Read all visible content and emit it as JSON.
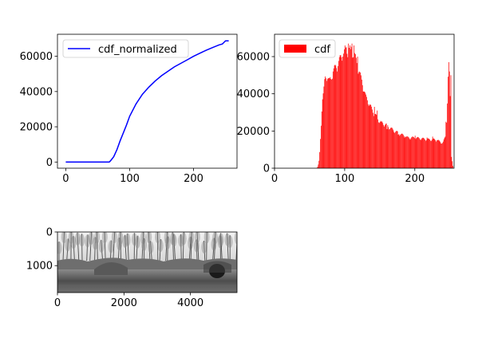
{
  "chart_data": [
    {
      "type": "line",
      "legend": "top-left",
      "xlim": [
        -13,
        268
      ],
      "ylim": [
        -3500,
        72500
      ],
      "xticks": [
        0,
        100,
        200
      ],
      "yticks": [
        0,
        20000,
        40000,
        60000
      ],
      "xtick_labels": [
        "0",
        "100",
        "200"
      ],
      "ytick_labels": [
        "0",
        "20000",
        "40000",
        "60000"
      ],
      "series": [
        {
          "name": "cdf_normalized",
          "color": "#0000ff",
          "x": [
            0,
            68,
            70,
            75,
            80,
            85,
            90,
            95,
            100,
            110,
            120,
            130,
            140,
            150,
            160,
            170,
            180,
            190,
            200,
            210,
            220,
            230,
            240,
            245,
            248,
            250,
            255
          ],
          "y": [
            0,
            0,
            700,
            3000,
            7000,
            12000,
            16500,
            21000,
            26000,
            33000,
            38500,
            42500,
            46000,
            49000,
            51500,
            54000,
            56000,
            58000,
            60000,
            61800,
            63500,
            65000,
            66500,
            67000,
            68000,
            68800,
            68800
          ]
        }
      ]
    },
    {
      "type": "bar",
      "legend": "top-left",
      "xlim": [
        0,
        256
      ],
      "ylim": [
        0,
        72000
      ],
      "xticks": [
        0,
        100,
        200
      ],
      "yticks": [
        0,
        20000,
        40000,
        60000
      ],
      "xtick_labels": [
        "0",
        "100",
        "200"
      ],
      "ytick_labels": [
        "0",
        "20000",
        "40000",
        "60000"
      ],
      "series": [
        {
          "name": "cdf",
          "color": "#ff0000",
          "envelope_x": [
            60,
            62,
            64,
            66,
            68,
            70,
            72,
            75,
            78,
            80,
            85,
            90,
            95,
            100,
            105,
            110,
            115,
            120,
            125,
            130,
            140,
            150,
            160,
            170,
            180,
            190,
            200,
            210,
            220,
            230,
            240,
            244,
            246,
            248,
            250,
            252,
            255
          ],
          "envelope_y": [
            0,
            1000,
            5000,
            20000,
            38000,
            42000,
            50000,
            52000,
            48000,
            50000,
            55000,
            58000,
            62000,
            65000,
            66000,
            66500,
            62000,
            55000,
            48000,
            40000,
            32000,
            26000,
            24000,
            21000,
            19000,
            17000,
            17000,
            16500,
            16000,
            16000,
            14000,
            18000,
            30000,
            57000,
            50000,
            8000,
            0
          ],
          "spike_x": [
            80,
            83,
            97,
            100,
            102,
            105,
            108,
            110,
            113,
            118,
            142,
            146,
            152,
            160,
            176,
            186,
            200,
            217,
            225,
            231,
            244,
            248,
            249,
            251
          ],
          "spike_y": [
            48000,
            52000,
            60000,
            66000,
            65000,
            67000,
            64000,
            67000,
            66000,
            60000,
            33000,
            31000,
            25000,
            21000,
            18000,
            17000,
            17500,
            16500,
            17000,
            15000,
            25000,
            57000,
            52000,
            50000
          ]
        }
      ]
    },
    {
      "type": "image",
      "xlim": [
        0,
        5400
      ],
      "ylim": [
        1800,
        0
      ],
      "xticks": [
        0,
        2000,
        4000
      ],
      "yticks": [
        0,
        1000
      ],
      "xtick_labels": [
        "0",
        "2000",
        "4000"
      ],
      "ytick_labels": [
        "0",
        "1000"
      ],
      "colormap": "gray"
    }
  ]
}
